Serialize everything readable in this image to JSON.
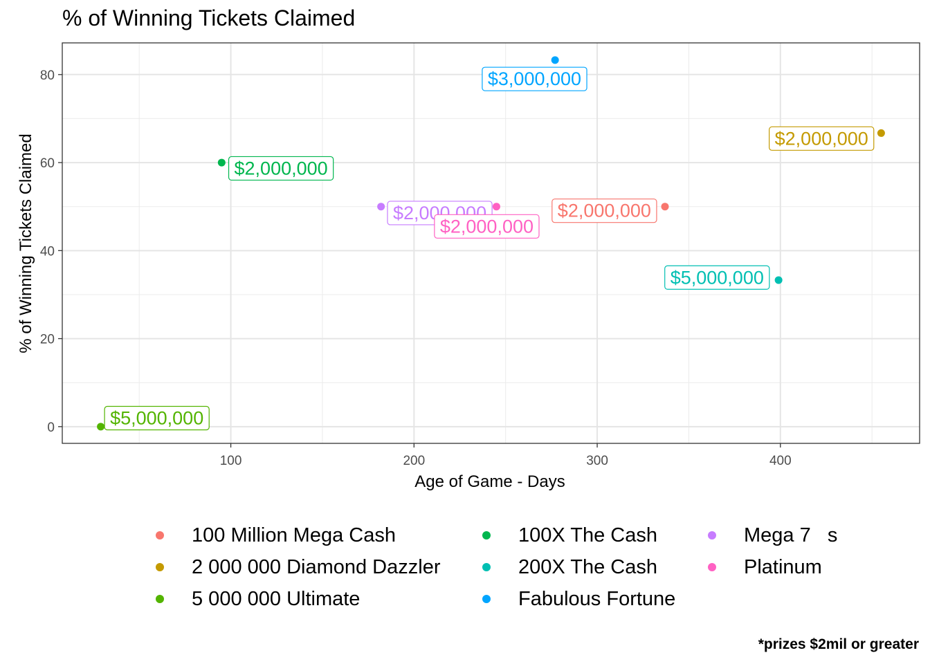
{
  "chart_data": {
    "type": "scatter",
    "title": "% of Winning Tickets Claimed",
    "xlabel": "Age of Game - Days",
    "ylabel": "% of Winning Tickets Claimed",
    "xlim": [
      8,
      476
    ],
    "ylim": [
      -3.8,
      87.2
    ],
    "xticks": [
      100,
      200,
      300,
      400
    ],
    "yticks": [
      0,
      20,
      40,
      60,
      80
    ],
    "grid": true,
    "legend_position": "bottom",
    "caption": "*prizes $2mil or greater",
    "series": [
      {
        "name": "100 Million Mega Cash",
        "color": "#F8766D",
        "points": [
          {
            "x": 337,
            "y": 50,
            "label": "$2,000,000"
          }
        ]
      },
      {
        "name": "2 000 000 Diamond Dazzler",
        "color": "#C49A00",
        "points": [
          {
            "x": 455,
            "y": 66.7,
            "label": "$2,000,000"
          }
        ]
      },
      {
        "name": "5 000 000 Ultimate",
        "color": "#53B400",
        "points": [
          {
            "x": 29,
            "y": 0,
            "label": "$5,000,000"
          }
        ]
      },
      {
        "name": "100X The Cash",
        "color": "#00B64E",
        "points": [
          {
            "x": 95,
            "y": 60,
            "label": "$2,000,000"
          }
        ]
      },
      {
        "name": "200X The Cash",
        "color": "#00BFB2",
        "points": [
          {
            "x": 399,
            "y": 33.3,
            "label": "$5,000,000"
          }
        ]
      },
      {
        "name": "Fabulous Fortune",
        "color": "#00A5FF",
        "points": [
          {
            "x": 277,
            "y": 83.3,
            "label": "$3,000,000"
          }
        ]
      },
      {
        "name": "Mega 7   s",
        "color": "#C77CFF",
        "points": [
          {
            "x": 182,
            "y": 50,
            "label": "$2,000,000"
          }
        ]
      },
      {
        "name": "Platinum",
        "color": "#FF61C3",
        "points": [
          {
            "x": 245,
            "y": 50,
            "label": "$2,000,000"
          }
        ]
      }
    ]
  }
}
